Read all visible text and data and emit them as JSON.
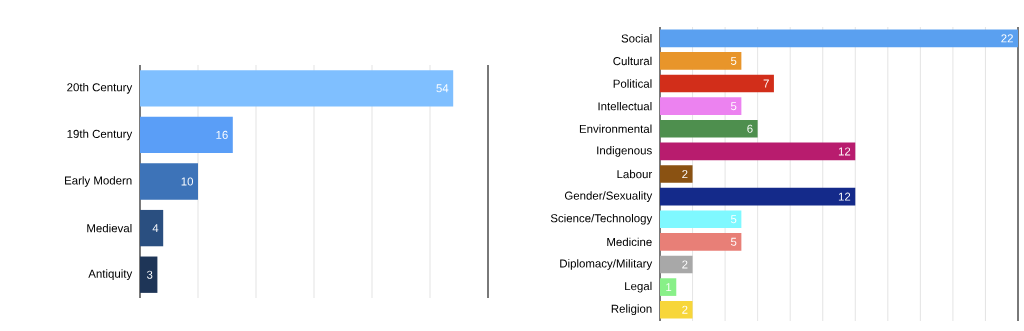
{
  "chart_data": [
    {
      "type": "bar",
      "orientation": "horizontal",
      "categories": [
        "20th Century",
        "19th Century",
        "Early Modern",
        "Medieval",
        "Antiquity"
      ],
      "values": [
        54,
        16,
        10,
        4,
        3
      ],
      "colors": [
        "#7fbfff",
        "#5a9ef7",
        "#3d73b8",
        "#2a4f80",
        "#1e3557"
      ],
      "xlim": [
        0,
        60
      ],
      "xticks": [
        {
          "value": 0,
          "label": null
        },
        {
          "value": 10,
          "label": null
        },
        {
          "value": 20,
          "label": null
        },
        {
          "value": 30,
          "label": null
        },
        {
          "value": 40,
          "label": null
        },
        {
          "value": 50,
          "label": null
        },
        {
          "value": 60,
          "label": null
        }
      ],
      "grid": "x",
      "data_labels": true,
      "tick_labels": "y"
    },
    {
      "type": "bar",
      "orientation": "horizontal",
      "categories": [
        "Social",
        "Cultural",
        "Political",
        "Intellectual",
        "Environmental",
        "Indigenous",
        "Labour",
        "Gender/Sexuality",
        "Science/Technology",
        "Medicine",
        "Diplomacy/Military",
        "Legal",
        "Religion"
      ],
      "values": [
        22,
        5,
        7,
        5,
        6,
        12,
        2,
        12,
        5,
        5,
        2,
        1,
        2
      ],
      "colors": [
        "#5aa0f0",
        "#e8952a",
        "#d22e1a",
        "#ec82f0",
        "#4e8f4e",
        "#b81c6e",
        "#8a5212",
        "#142a8a",
        "#7ff8ff",
        "#e87f77",
        "#a8a8a8",
        "#88f088",
        "#f7d63a"
      ],
      "xlim": [
        0,
        22
      ],
      "xticks": [
        {
          "value": 0,
          "label": null
        },
        {
          "value": 2,
          "label": null
        },
        {
          "value": 4,
          "label": null
        },
        {
          "value": 6,
          "label": null
        },
        {
          "value": 8,
          "label": null
        },
        {
          "value": 10,
          "label": null
        },
        {
          "value": 12,
          "label": null
        },
        {
          "value": 14,
          "label": null
        },
        {
          "value": 16,
          "label": null
        },
        {
          "value": 18,
          "label": null
        },
        {
          "value": 20,
          "label": null
        },
        {
          "value": 22,
          "label": null
        }
      ],
      "grid": "x",
      "data_labels": true,
      "tick_labels": "y"
    }
  ]
}
